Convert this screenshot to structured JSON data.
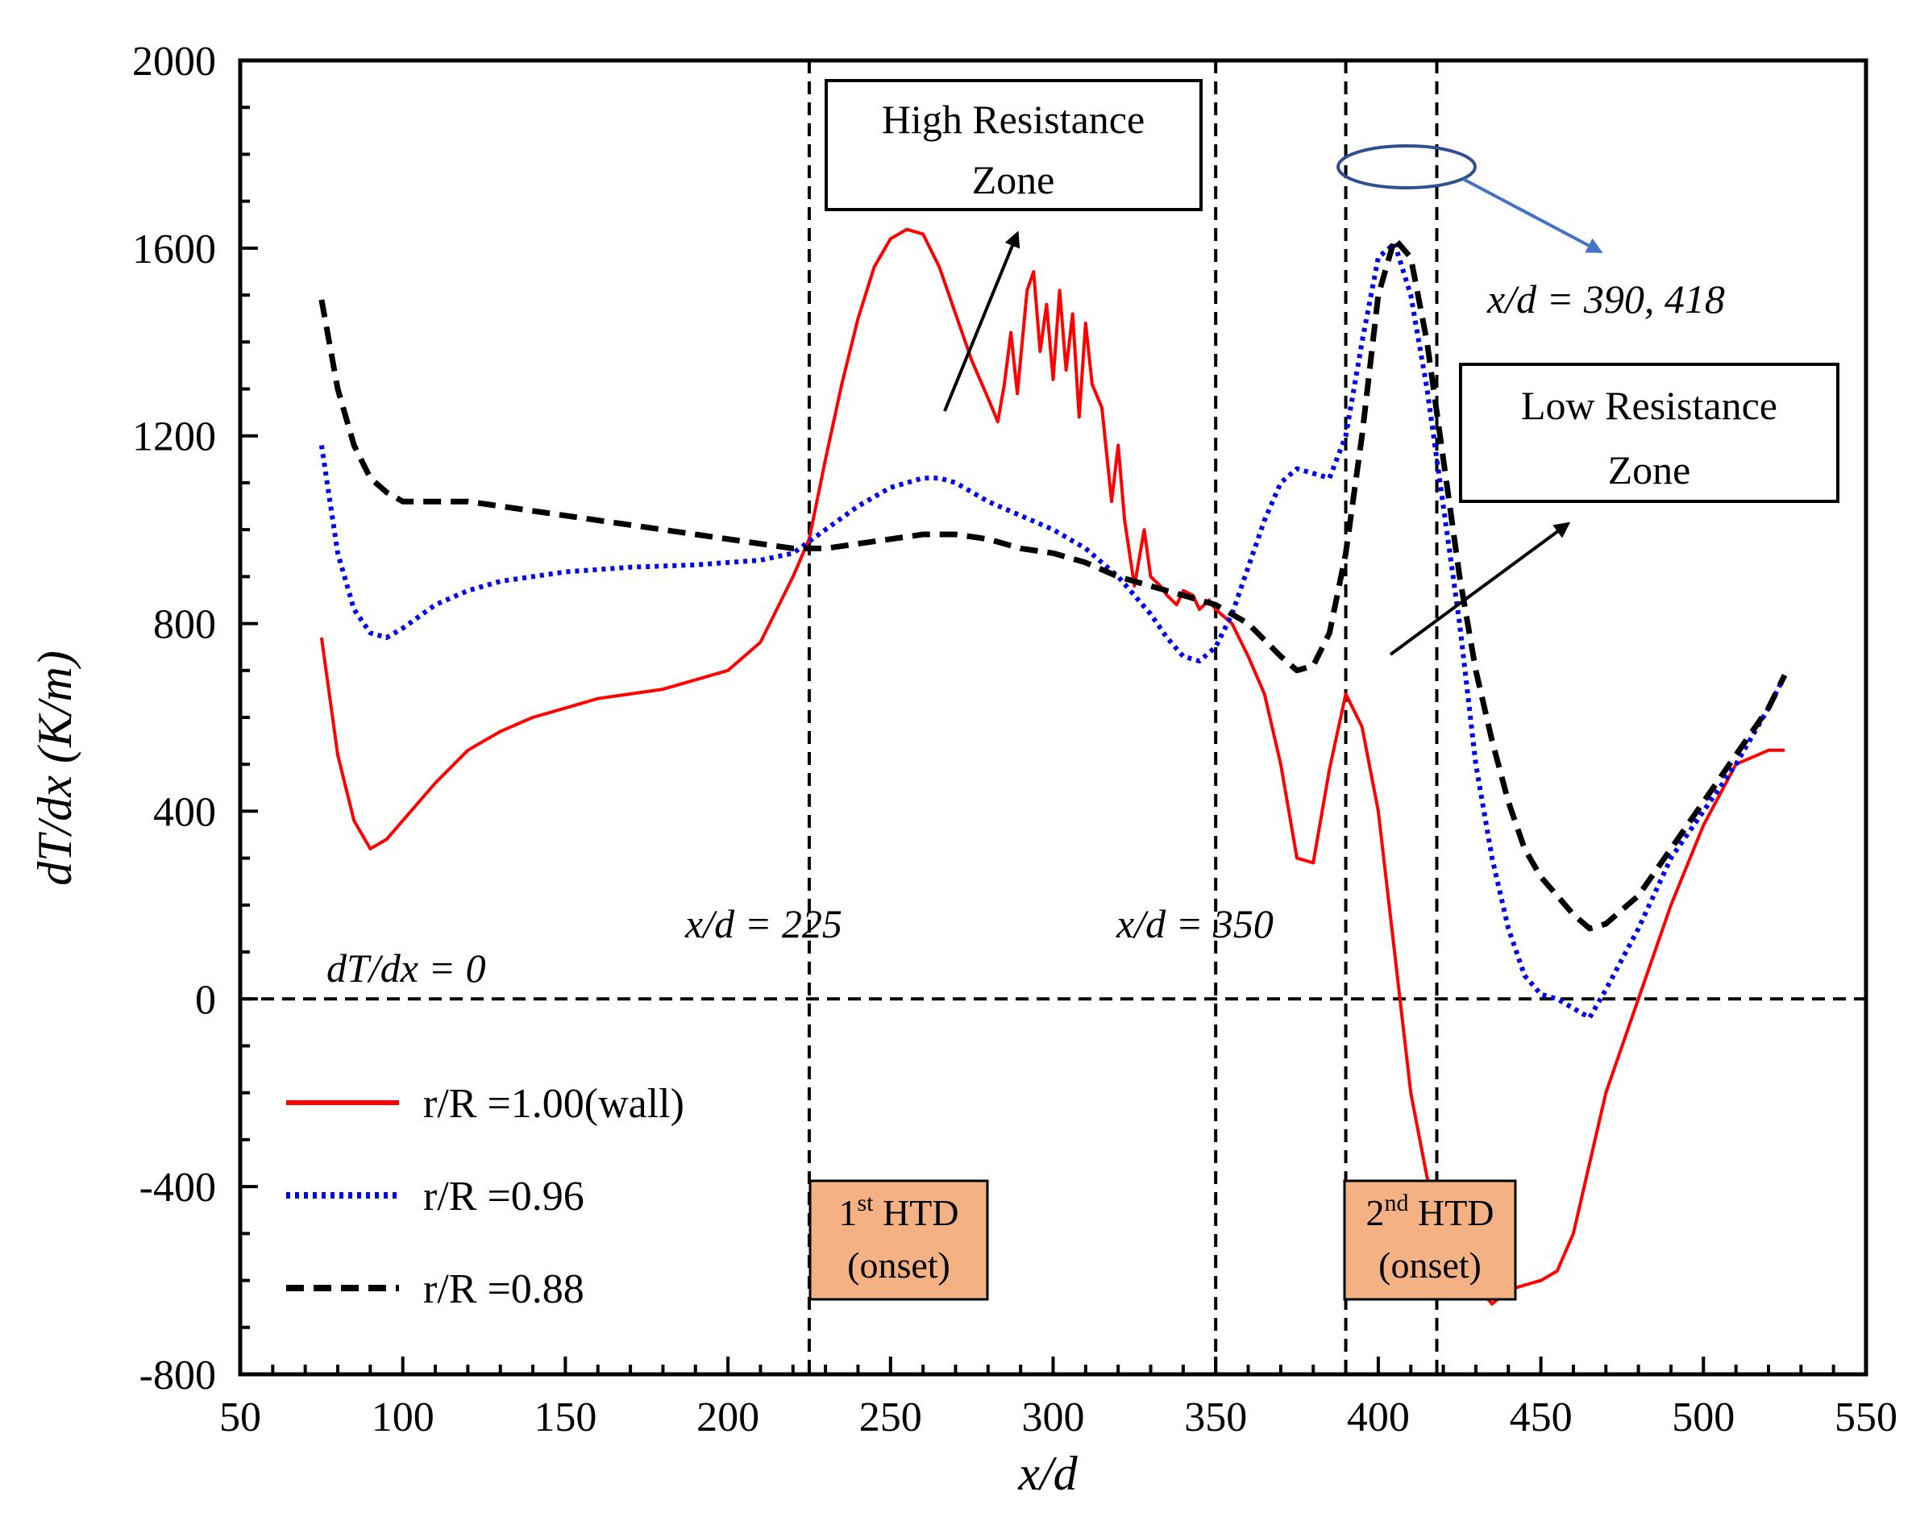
{
  "chart_data": {
    "type": "line",
    "xlabel": "x/d",
    "ylabel": "dT/dx (K/m)",
    "xlim": [
      50,
      550
    ],
    "ylim": [
      -800,
      2000
    ],
    "xticks": [
      "50",
      "100",
      "150",
      "200",
      "250",
      "300",
      "350",
      "400",
      "450",
      "500",
      "550"
    ],
    "yticks": [
      "-800",
      "-400",
      "0",
      "400",
      "800",
      "1200",
      "1600",
      "2000"
    ],
    "colors": {
      "wall": "#ff0000",
      "r096": "#0000ee",
      "r088": "#000000",
      "ellipse": "#2f4f8f",
      "arrow_blue": "#4472c4",
      "htd_fill": "#f4b183"
    },
    "series": [
      {
        "name": "r/R =1.00(wall)",
        "style": "solid",
        "color": "#ff0000",
        "x": [
          75,
          80,
          85,
          90,
          95,
          100,
          110,
          120,
          130,
          140,
          150,
          160,
          170,
          180,
          190,
          200,
          210,
          215,
          220,
          225,
          230,
          235,
          240,
          245,
          250,
          255,
          260,
          265,
          270,
          275,
          280,
          283,
          285,
          287,
          289,
          292,
          294,
          296,
          298,
          300,
          302,
          304,
          306,
          308,
          310,
          312,
          315,
          318,
          320,
          322,
          325,
          328,
          330,
          333,
          335,
          338,
          340,
          343,
          345,
          348,
          350,
          355,
          360,
          365,
          370,
          375,
          380,
          385,
          390,
          395,
          400,
          405,
          410,
          415,
          420,
          425,
          430,
          435,
          440,
          445,
          450,
          455,
          460,
          465,
          470,
          480,
          490,
          500,
          510,
          520,
          525
        ],
        "y": [
          770,
          520,
          380,
          320,
          340,
          380,
          460,
          530,
          570,
          600,
          620,
          640,
          650,
          660,
          680,
          700,
          760,
          830,
          900,
          980,
          1150,
          1310,
          1450,
          1560,
          1620,
          1640,
          1630,
          1560,
          1460,
          1360,
          1280,
          1230,
          1310,
          1420,
          1290,
          1510,
          1550,
          1380,
          1480,
          1320,
          1510,
          1340,
          1460,
          1240,
          1440,
          1310,
          1260,
          1060,
          1180,
          1020,
          880,
          1000,
          900,
          880,
          860,
          840,
          870,
          860,
          830,
          850,
          830,
          800,
          730,
          650,
          500,
          300,
          290,
          490,
          650,
          580,
          400,
          100,
          -200,
          -380,
          -480,
          -560,
          -610,
          -650,
          -620,
          -610,
          -600,
          -580,
          -500,
          -350,
          -200,
          0,
          200,
          370,
          500,
          530,
          530
        ]
      },
      {
        "name": "r/R =0.96",
        "style": "dotted",
        "color": "#0000ee",
        "x": [
          75,
          80,
          85,
          90,
          95,
          100,
          110,
          120,
          130,
          150,
          170,
          190,
          210,
          220,
          230,
          240,
          250,
          260,
          265,
          270,
          280,
          290,
          300,
          310,
          320,
          330,
          335,
          340,
          345,
          350,
          355,
          360,
          365,
          370,
          375,
          380,
          385,
          390,
          395,
          400,
          405,
          410,
          415,
          420,
          425,
          430,
          435,
          440,
          445,
          450,
          455,
          460,
          465,
          470,
          480,
          490,
          500,
          510,
          520,
          525
        ],
        "y": [
          1180,
          950,
          830,
          780,
          770,
          790,
          840,
          870,
          890,
          910,
          920,
          925,
          935,
          950,
          1000,
          1050,
          1090,
          1110,
          1110,
          1100,
          1060,
          1030,
          1000,
          960,
          900,
          820,
          770,
          730,
          720,
          750,
          820,
          920,
          1020,
          1100,
          1130,
          1120,
          1110,
          1200,
          1400,
          1580,
          1610,
          1500,
          1300,
          1050,
          800,
          500,
          300,
          150,
          50,
          10,
          0,
          -20,
          -40,
          20,
          150,
          300,
          400,
          500,
          620,
          690
        ]
      },
      {
        "name": "r/R =0.88",
        "style": "dashed",
        "color": "#000000",
        "x": [
          75,
          80,
          85,
          90,
          95,
          100,
          110,
          120,
          130,
          150,
          170,
          190,
          210,
          220,
          230,
          240,
          250,
          260,
          270,
          280,
          290,
          300,
          310,
          320,
          330,
          340,
          350,
          360,
          370,
          375,
          380,
          385,
          390,
          395,
          400,
          405,
          410,
          415,
          420,
          425,
          430,
          435,
          440,
          445,
          450,
          455,
          460,
          465,
          470,
          480,
          490,
          500,
          510,
          520,
          525
        ],
        "y": [
          1490,
          1300,
          1180,
          1110,
          1080,
          1060,
          1060,
          1060,
          1050,
          1030,
          1010,
          990,
          970,
          960,
          960,
          970,
          980,
          990,
          990,
          980,
          960,
          950,
          930,
          900,
          880,
          860,
          840,
          800,
          730,
          700,
          710,
          780,
          950,
          1200,
          1500,
          1620,
          1580,
          1400,
          1150,
          900,
          700,
          550,
          420,
          320,
          260,
          220,
          180,
          150,
          160,
          220,
          320,
          420,
          520,
          620,
          690
        ]
      }
    ],
    "vlines": [
      225,
      350,
      390,
      418
    ],
    "hline_y": 0,
    "annotations": {
      "zero_line_label": "dT/dx = 0",
      "vline_225_label": "x/d = 225",
      "vline_350_label": "x/d = 350",
      "peaks_label": "x/d = 390, 418",
      "high_zone_line1": "High Resistance",
      "high_zone_line2": "Zone",
      "low_zone_line1": "Low Resistance",
      "low_zone_line2": "Zone",
      "htd1_sup": "st",
      "htd1_num": "1",
      "htd1_word": " HTD",
      "htd1_onset": "(onset)",
      "htd2_sup": "nd",
      "htd2_num": "2",
      "htd2_word": " HTD",
      "htd2_onset": "(onset)"
    },
    "legend": {
      "position": "bottom-left",
      "entries": [
        {
          "label": "r/R =1.00(wall)"
        },
        {
          "label": "r/R =0.96"
        },
        {
          "label": "r/R =0.88"
        }
      ]
    }
  }
}
